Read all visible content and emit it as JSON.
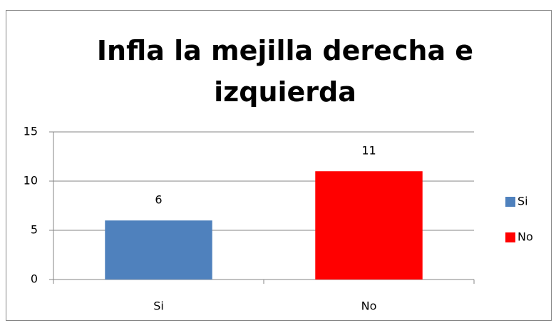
{
  "chart_data": {
    "type": "bar",
    "title": "Infla la mejilla derecha e izquierda",
    "categories": [
      "Si",
      "No"
    ],
    "values": [
      6,
      11
    ],
    "colors": [
      "#4f81bd",
      "#ff0000"
    ],
    "ylim": [
      0,
      15
    ],
    "yticks": [
      0,
      5,
      10,
      15
    ],
    "grid": true,
    "legend": "right"
  }
}
